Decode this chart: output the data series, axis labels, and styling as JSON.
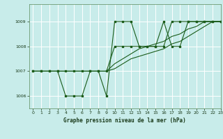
{
  "title": "Graphe pression niveau de la mer (hPa)",
  "bg_color": "#c8ecea",
  "grid_color": "#b8dedd",
  "line_color": "#1a5c1a",
  "xlim": [
    -0.5,
    23
  ],
  "ylim": [
    1005.5,
    1009.7
  ],
  "yticks": [
    1006,
    1007,
    1008,
    1009
  ],
  "xticks": [
    0,
    1,
    2,
    3,
    4,
    5,
    6,
    7,
    8,
    9,
    10,
    11,
    12,
    13,
    14,
    15,
    16,
    17,
    18,
    19,
    20,
    21,
    22,
    23
  ],
  "series1": [
    1007,
    1007,
    1007,
    1007,
    1006,
    1006,
    1006,
    1007,
    1007,
    1006,
    1009,
    1009,
    1009,
    1008,
    1008,
    1008,
    1009,
    1008,
    1008,
    1009,
    1009,
    1009,
    1009,
    1009
  ],
  "series2": [
    1007,
    1007,
    1007,
    1007,
    1007,
    1007,
    1007,
    1007,
    1007,
    1007,
    1008,
    1008,
    1008,
    1008,
    1008,
    1008,
    1008,
    1009,
    1009,
    1009,
    1009,
    1009,
    1009,
    1009
  ],
  "series3": [
    1007,
    1007,
    1007,
    1007,
    1007,
    1007,
    1007,
    1007,
    1007,
    1007,
    1007.3,
    1007.5,
    1007.7,
    1007.9,
    1008.0,
    1008.1,
    1008.2,
    1008.4,
    1008.5,
    1008.7,
    1008.8,
    1009.0,
    1009.0,
    1009.0
  ],
  "series4": [
    1007,
    1007,
    1007,
    1007,
    1007,
    1007,
    1007,
    1007,
    1007,
    1007,
    1007.1,
    1007.3,
    1007.5,
    1007.6,
    1007.7,
    1007.8,
    1007.9,
    1008.1,
    1008.2,
    1008.4,
    1008.6,
    1008.8,
    1009.0,
    1009.0
  ]
}
